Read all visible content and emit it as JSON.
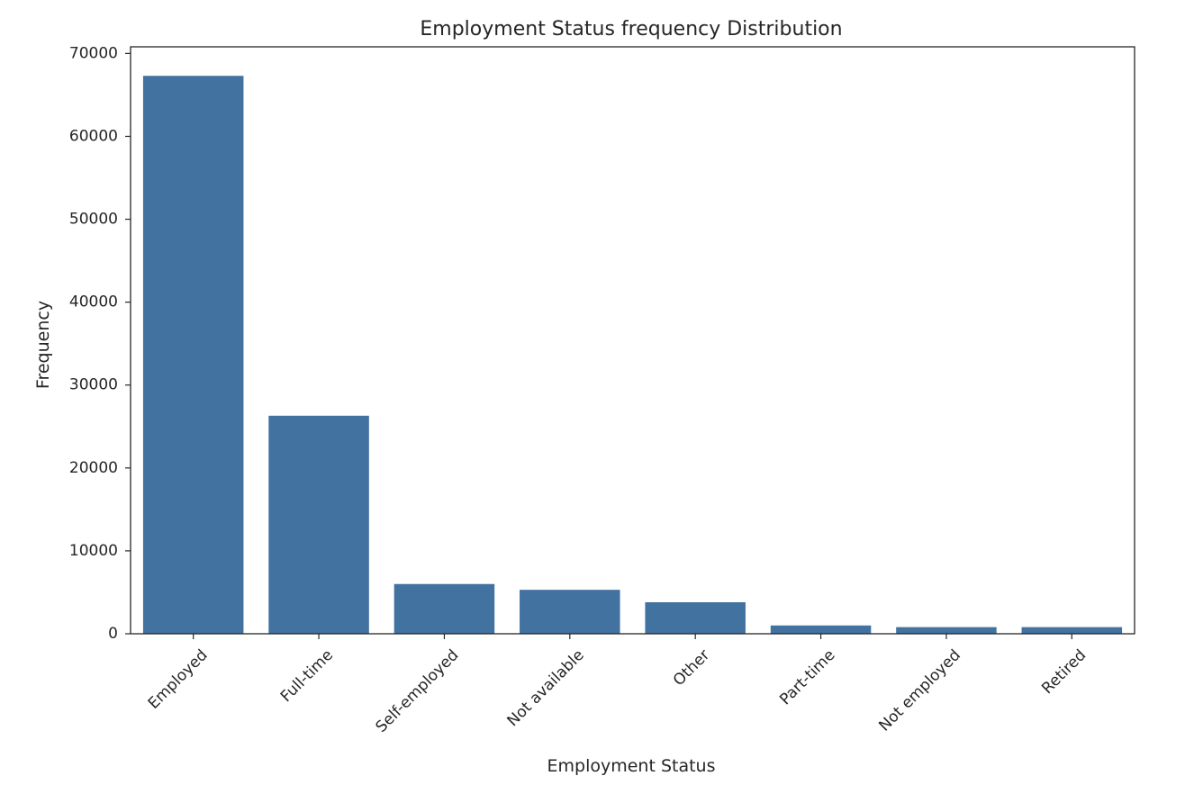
{
  "chart_data": {
    "type": "bar",
    "title": "Employment Status frequency Distribution",
    "xlabel": "Employment Status",
    "ylabel": "Frequency",
    "categories": [
      "Employed",
      "Full-time",
      "Self-employed",
      "Not available",
      "Other",
      "Part-time",
      "Not employed",
      "Retired"
    ],
    "values": [
      67300,
      26300,
      6000,
      5300,
      3800,
      1000,
      800,
      800
    ],
    "ylim": [
      0,
      70800
    ],
    "yticks": [
      0,
      10000,
      20000,
      30000,
      40000,
      50000,
      60000,
      70000
    ],
    "ytick_labels": [
      "0",
      "10000",
      "20000",
      "30000",
      "40000",
      "50000",
      "60000",
      "70000"
    ],
    "bar_color": "#4272a0",
    "grid": false,
    "legend": "none"
  }
}
